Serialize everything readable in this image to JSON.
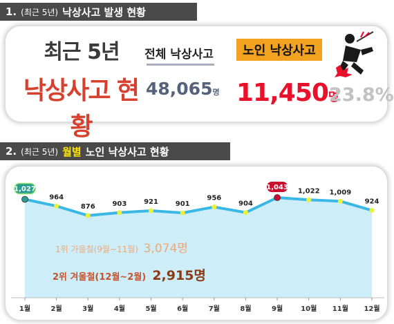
{
  "section1": {
    "num": "1.",
    "paren": "(최근 5년)",
    "title": "낙상사고 발생 현황"
  },
  "section2": {
    "num": "2.",
    "paren": "(최근 5년)",
    "highlight": "월별",
    "title": "노인 낙상사고 현황"
  },
  "summary": {
    "recent_line1": "최근 5년",
    "recent_line2": "낙상사고 현황",
    "total_label": "전체 낙상사고",
    "total_value": "48,065",
    "total_unit": "명",
    "elder_label": "노인 낙상사고",
    "elder_value": "11,450",
    "elder_unit": "명",
    "elder_pct": "23.8%",
    "icon": "falling-person-icon"
  },
  "rank1": {
    "label": "1위 가을철(9월~11월)",
    "value": "3,074명"
  },
  "rank2": {
    "label": "2위 겨울철(12월~2월)",
    "value": "2,915명"
  },
  "colors": {
    "line": "#3bb7e6",
    "fill": "#cdeef9",
    "point": "#ecf23c",
    "max_point": "#c8102e",
    "first_point": "#2a9d8f",
    "orange": "#f1a21e",
    "red": "#e8102a"
  },
  "chart_data": {
    "type": "area",
    "x": [
      "1월",
      "2월",
      "3월",
      "4월",
      "5월",
      "6월",
      "7월",
      "8월",
      "9월",
      "10월",
      "11월",
      "12월"
    ],
    "values": [
      1027,
      964,
      876,
      903,
      921,
      901,
      956,
      904,
      1043,
      1022,
      1009,
      924
    ],
    "labels": [
      "1,027",
      "964",
      "876",
      "903",
      "921",
      "901",
      "956",
      "904",
      "1,043",
      "1,022",
      "1,009",
      "924"
    ],
    "highlighted": {
      "first": 0,
      "max": 8
    },
    "ylim": [
      0,
      1100
    ]
  }
}
